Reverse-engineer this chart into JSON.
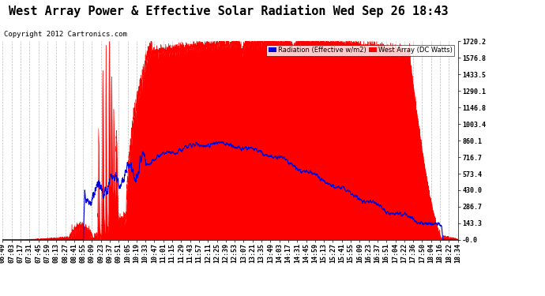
{
  "title": "West Array Power & Effective Solar Radiation Wed Sep 26 18:43",
  "copyright": "Copyright 2012 Cartronics.com",
  "legend_blue": "Radiation (Effective w/m2)",
  "legend_red": "West Array (DC Watts)",
  "ytick_labels": [
    "-0.0",
    "143.3",
    "286.7",
    "430.0",
    "573.4",
    "716.7",
    "860.1",
    "1003.4",
    "1146.8",
    "1290.1",
    "1433.5",
    "1576.8",
    "1720.2"
  ],
  "ytick_values": [
    0.0,
    143.3,
    286.7,
    430.0,
    573.4,
    716.7,
    860.1,
    1003.4,
    1146.8,
    1290.1,
    1433.5,
    1576.8,
    1720.2
  ],
  "ymax": 1720.2,
  "ymin": 0,
  "red_color": "#ff0000",
  "blue_color": "#0000dd",
  "grid_color": "#bbbbbb",
  "title_fontsize": 11,
  "copyright_fontsize": 6.5,
  "tick_fontsize": 6,
  "xtick_labels": [
    "06:49",
    "07:03",
    "07:17",
    "07:31",
    "07:45",
    "07:59",
    "08:13",
    "08:27",
    "08:41",
    "08:55",
    "09:09",
    "09:23",
    "09:37",
    "09:51",
    "10:05",
    "10:19",
    "10:33",
    "10:47",
    "11:01",
    "11:15",
    "11:29",
    "11:43",
    "11:57",
    "12:11",
    "12:25",
    "12:39",
    "12:53",
    "13:07",
    "13:21",
    "13:35",
    "13:49",
    "14:03",
    "14:17",
    "14:31",
    "14:45",
    "14:59",
    "15:13",
    "15:27",
    "15:41",
    "15:55",
    "16:09",
    "16:23",
    "16:37",
    "16:51",
    "17:04",
    "17:22",
    "17:36",
    "17:50",
    "18:04",
    "18:16",
    "18:22",
    "18:34"
  ]
}
